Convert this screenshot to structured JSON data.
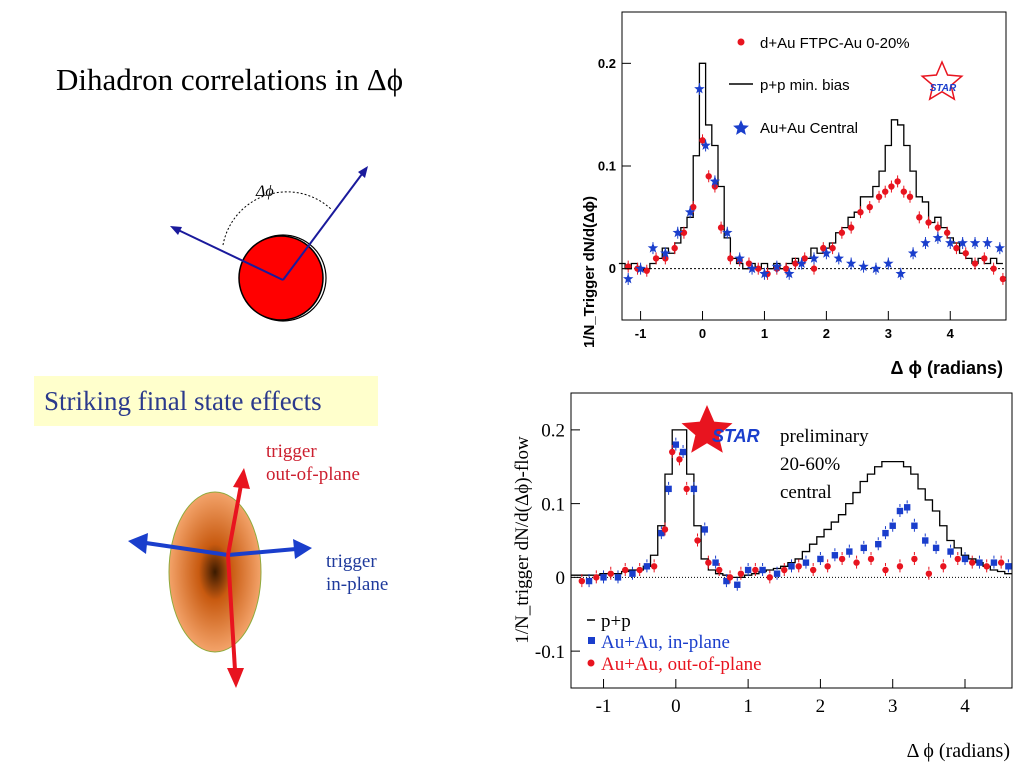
{
  "slide": {
    "title": "Dihadron correlations in Δϕ",
    "subtitle": "Striking final state effects",
    "delta_phi_label": "Δϕ",
    "trigger_oop": [
      "trigger",
      "out-of-plane"
    ],
    "trigger_ip": [
      "trigger",
      "in-plane"
    ]
  },
  "colors": {
    "red": "#e8141f",
    "blue": "#1a3ecc",
    "title_blue": "#2b3a8c",
    "label_red": "#cc1f2f",
    "highlight": "#ffffcc"
  },
  "chart_data": [
    {
      "type": "line",
      "ylabel": "1/N_Trigger dN/d(Δϕ)",
      "xlabel": "Δ ϕ (radians)",
      "xlim": [
        -1.3,
        4.9
      ],
      "ylim": [
        -0.05,
        0.25
      ],
      "xticks": [
        -1,
        0,
        1,
        2,
        3,
        4
      ],
      "yticks": [
        0,
        0.1,
        0.2
      ],
      "ytick_labels": [
        "0",
        "0.1",
        "0.2"
      ],
      "logo": "STAR",
      "legend_position": "top-right",
      "legend": [
        "d+Au FTPC-Au 0-20%",
        "p+p min. bias",
        "Au+Au Central"
      ],
      "series": [
        {
          "name": "p+p min. bias",
          "style": "step",
          "x": [
            -1.3,
            -1.2,
            -1.1,
            -1.0,
            -0.9,
            -0.8,
            -0.7,
            -0.6,
            -0.5,
            -0.4,
            -0.3,
            -0.2,
            -0.1,
            0.0,
            0.1,
            0.2,
            0.3,
            0.4,
            0.5,
            0.6,
            0.7,
            0.8,
            0.9,
            1.0,
            1.1,
            1.2,
            1.3,
            1.4,
            1.5,
            1.6,
            1.7,
            1.8,
            1.9,
            2.0,
            2.1,
            2.2,
            2.3,
            2.4,
            2.5,
            2.6,
            2.7,
            2.8,
            2.9,
            3.0,
            3.1,
            3.2,
            3.3,
            3.4,
            3.5,
            3.6,
            3.7,
            3.8,
            3.9,
            4.0,
            4.1,
            4.2,
            4.3,
            4.4,
            4.5,
            4.6,
            4.7,
            4.8
          ],
          "values": [
            0.005,
            0.0,
            0.005,
            -0.002,
            0.0,
            0.005,
            0.01,
            0.02,
            0.015,
            0.025,
            0.04,
            0.05,
            0.11,
            0.2,
            0.14,
            0.12,
            0.08,
            0.03,
            0.01,
            0.005,
            0.0,
            0.005,
            0.0,
            0.005,
            0.0,
            0.005,
            0.0,
            0.005,
            0.01,
            0.005,
            0.01,
            0.02,
            0.015,
            0.02,
            0.025,
            0.035,
            0.04,
            0.05,
            0.055,
            0.07,
            0.07,
            0.08,
            0.095,
            0.12,
            0.145,
            0.14,
            0.12,
            0.095,
            0.07,
            0.065,
            0.045,
            0.05,
            0.04,
            0.03,
            0.025,
            0.015,
            0.01,
            0.005,
            0.01,
            0.005,
            0.01,
            0.005
          ]
        },
        {
          "name": "d+Au FTPC-Au 0-20%",
          "style": "points",
          "x": [
            -1.2,
            -1.05,
            -0.9,
            -0.75,
            -0.6,
            -0.45,
            -0.3,
            -0.15,
            0.0,
            0.1,
            0.2,
            0.3,
            0.45,
            0.6,
            0.75,
            0.9,
            1.05,
            1.2,
            1.35,
            1.5,
            1.65,
            1.8,
            1.95,
            2.1,
            2.25,
            2.4,
            2.55,
            2.7,
            2.85,
            2.95,
            3.05,
            3.15,
            3.25,
            3.35,
            3.5,
            3.65,
            3.8,
            3.95,
            4.1,
            4.25,
            4.4,
            4.55,
            4.7,
            4.85
          ],
          "values": [
            0.002,
            0.0,
            -0.002,
            0.01,
            0.01,
            0.02,
            0.035,
            0.06,
            0.125,
            0.09,
            0.08,
            0.04,
            0.01,
            0.008,
            0.005,
            0.0,
            -0.005,
            0.0,
            0.0,
            0.005,
            0.01,
            0.0,
            0.02,
            0.02,
            0.035,
            0.04,
            0.055,
            0.06,
            0.07,
            0.075,
            0.08,
            0.085,
            0.075,
            0.07,
            0.05,
            0.045,
            0.04,
            0.035,
            0.02,
            0.015,
            0.005,
            0.01,
            0.0,
            -0.01
          ]
        },
        {
          "name": "Au+Au Central",
          "style": "stars",
          "x": [
            -1.2,
            -1.0,
            -0.8,
            -0.6,
            -0.4,
            -0.2,
            -0.05,
            0.05,
            0.2,
            0.4,
            0.6,
            0.8,
            1.0,
            1.2,
            1.4,
            1.6,
            1.8,
            2.0,
            2.2,
            2.4,
            2.6,
            2.8,
            3.0,
            3.2,
            3.4,
            3.6,
            3.8,
            4.0,
            4.2,
            4.4,
            4.6,
            4.8
          ],
          "values": [
            -0.01,
            0.0,
            0.02,
            0.015,
            0.035,
            0.055,
            0.175,
            0.12,
            0.085,
            0.035,
            0.01,
            0.0,
            -0.005,
            0.002,
            -0.005,
            0.005,
            0.01,
            0.015,
            0.01,
            0.005,
            0.002,
            0.0,
            0.005,
            -0.005,
            0.015,
            0.025,
            0.03,
            0.025,
            0.025,
            0.025,
            0.025,
            0.02
          ]
        }
      ]
    },
    {
      "type": "line",
      "ylabel": "1/N_trigger dN/d(Δϕ)-flow",
      "xlabel": "Δ ϕ (radians)",
      "xlim": [
        -1.45,
        4.65
      ],
      "ylim": [
        -0.15,
        0.25
      ],
      "xticks": [
        -1,
        0,
        1,
        2,
        3,
        4
      ],
      "yticks": [
        -0.1,
        0,
        0.1,
        0.2
      ],
      "ytick_labels": [
        "-0.1",
        "0",
        "0.1",
        "0.2"
      ],
      "logo": "STAR",
      "annotation": [
        "preliminary",
        "20-60%",
        "central"
      ],
      "legend_position": "bottom-left",
      "legend": [
        "p+p",
        "Au+Au, in-plane",
        "Au+Au, out-of-plane"
      ],
      "series": [
        {
          "name": "p+p",
          "style": "step",
          "x": [
            -1.4,
            -1.3,
            -1.2,
            -1.1,
            -1.0,
            -0.9,
            -0.8,
            -0.7,
            -0.6,
            -0.5,
            -0.4,
            -0.3,
            -0.2,
            -0.1,
            0.0,
            0.1,
            0.2,
            0.3,
            0.4,
            0.5,
            0.6,
            0.7,
            0.8,
            0.9,
            1.0,
            1.1,
            1.2,
            1.3,
            1.4,
            1.5,
            1.6,
            1.7,
            1.8,
            1.9,
            2.0,
            2.1,
            2.2,
            2.3,
            2.4,
            2.5,
            2.6,
            2.7,
            2.8,
            2.9,
            3.0,
            3.1,
            3.2,
            3.3,
            3.4,
            3.5,
            3.6,
            3.7,
            3.8,
            3.9,
            4.0,
            4.1,
            4.2,
            4.3,
            4.4,
            4.5,
            4.6
          ],
          "values": [
            0.003,
            0.003,
            0.003,
            0.003,
            0.005,
            0.005,
            0.005,
            0.008,
            0.01,
            0.01,
            0.015,
            0.03,
            0.07,
            0.14,
            0.2,
            0.2,
            0.14,
            0.07,
            0.025,
            0.01,
            0.005,
            0.003,
            0.0,
            0.0,
            0.003,
            0.005,
            0.008,
            0.01,
            0.012,
            0.015,
            0.02,
            0.025,
            0.035,
            0.045,
            0.055,
            0.065,
            0.075,
            0.085,
            0.1,
            0.115,
            0.13,
            0.14,
            0.15,
            0.157,
            0.157,
            0.157,
            0.15,
            0.14,
            0.12,
            0.105,
            0.09,
            0.07,
            0.05,
            0.04,
            0.03,
            0.025,
            0.02,
            0.015,
            0.01,
            0.008,
            0.005
          ]
        },
        {
          "name": "Au+Au, in-plane",
          "style": "squares",
          "x": [
            -1.2,
            -1.0,
            -0.8,
            -0.6,
            -0.4,
            -0.2,
            -0.1,
            0.0,
            0.1,
            0.25,
            0.4,
            0.55,
            0.7,
            0.85,
            1.0,
            1.2,
            1.4,
            1.6,
            1.8,
            2.0,
            2.2,
            2.4,
            2.6,
            2.8,
            2.9,
            3.0,
            3.1,
            3.2,
            3.3,
            3.45,
            3.6,
            3.8,
            4.0,
            4.2,
            4.4,
            4.6
          ],
          "values": [
            -0.005,
            0.0,
            0.0,
            0.005,
            0.015,
            0.06,
            0.12,
            0.18,
            0.17,
            0.12,
            0.065,
            0.02,
            -0.005,
            -0.01,
            0.01,
            0.01,
            0.005,
            0.015,
            0.02,
            0.025,
            0.03,
            0.035,
            0.04,
            0.045,
            0.06,
            0.07,
            0.09,
            0.095,
            0.07,
            0.05,
            0.04,
            0.035,
            0.025,
            0.02,
            0.02,
            0.015
          ]
        },
        {
          "name": "Au+Au, out-of-plane",
          "style": "dots",
          "x": [
            -1.3,
            -1.1,
            -0.9,
            -0.7,
            -0.5,
            -0.3,
            -0.15,
            -0.05,
            0.05,
            0.15,
            0.3,
            0.45,
            0.6,
            0.75,
            0.9,
            1.1,
            1.3,
            1.5,
            1.7,
            1.9,
            2.1,
            2.3,
            2.5,
            2.7,
            2.9,
            3.1,
            3.3,
            3.5,
            3.7,
            3.9,
            4.1,
            4.3,
            4.5
          ],
          "values": [
            -0.005,
            0.0,
            0.005,
            0.01,
            0.01,
            0.015,
            0.065,
            0.17,
            0.16,
            0.12,
            0.05,
            0.02,
            0.01,
            0.0,
            0.005,
            0.01,
            0.0,
            0.01,
            0.015,
            0.01,
            0.015,
            0.025,
            0.02,
            0.025,
            0.01,
            0.015,
            0.025,
            0.005,
            0.015,
            0.025,
            0.02,
            0.015,
            0.02
          ]
        }
      ]
    }
  ]
}
